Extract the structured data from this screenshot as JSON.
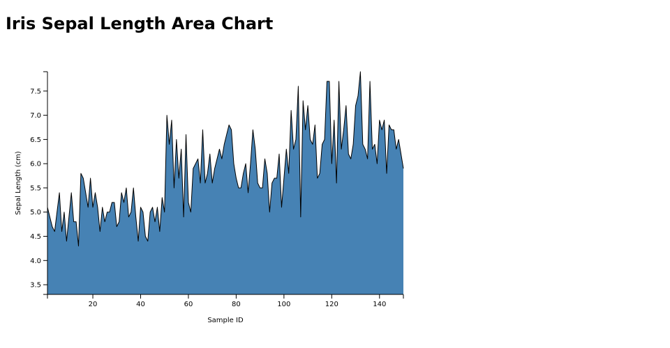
{
  "chart_data": {
    "type": "area",
    "title": "Iris Sepal Length Area Chart",
    "xlabel": "Sample ID",
    "ylabel": "Sepal Length (cm)",
    "xlim": [
      1,
      150
    ],
    "ylim": [
      3.3,
      7.9
    ],
    "x_ticks": [
      20,
      40,
      60,
      80,
      100,
      120,
      140
    ],
    "y_ticks": [
      3.5,
      4.0,
      4.5,
      5.0,
      5.5,
      6.0,
      6.5,
      7.0,
      7.5
    ],
    "y_tick_labels": [
      "3.5",
      "4.0",
      "4.5",
      "5.0",
      "5.5",
      "6.0",
      "6.5",
      "7.0",
      "7.5"
    ],
    "grid": false,
    "fill_color": "#4682b4",
    "line_color": "#000000",
    "series": [
      {
        "x_start": 1,
        "values": [
          5.1,
          4.9,
          4.7,
          4.6,
          5.0,
          5.4,
          4.6,
          5.0,
          4.4,
          4.9,
          5.4,
          4.8,
          4.8,
          4.3,
          5.8,
          5.7,
          5.4,
          5.1,
          5.7,
          5.1,
          5.4,
          5.1,
          4.6,
          5.1,
          4.8,
          5.0,
          5.0,
          5.2,
          5.2,
          4.7,
          4.8,
          5.4,
          5.2,
          5.5,
          4.9,
          5.0,
          5.5,
          4.9,
          4.4,
          5.1,
          5.0,
          4.5,
          4.4,
          5.0,
          5.1,
          4.8,
          5.1,
          4.6,
          5.3,
          5.0,
          7.0,
          6.4,
          6.9,
          5.5,
          6.5,
          5.7,
          6.3,
          4.9,
          6.6,
          5.2,
          5.0,
          5.9,
          6.0,
          6.1,
          5.6,
          6.7,
          5.6,
          5.8,
          6.2,
          5.6,
          5.9,
          6.1,
          6.3,
          6.1,
          6.4,
          6.6,
          6.8,
          6.7,
          6.0,
          5.7,
          5.5,
          5.5,
          5.8,
          6.0,
          5.4,
          6.0,
          6.7,
          6.3,
          5.6,
          5.5,
          5.5,
          6.1,
          5.8,
          5.0,
          5.6,
          5.7,
          5.7,
          6.2,
          5.1,
          5.7,
          6.3,
          5.8,
          7.1,
          6.3,
          6.5,
          7.6,
          4.9,
          7.3,
          6.7,
          7.2,
          6.5,
          6.4,
          6.8,
          5.7,
          5.8,
          6.4,
          6.5,
          7.7,
          7.7,
          6.0,
          6.9,
          5.6,
          7.7,
          6.3,
          6.7,
          7.2,
          6.2,
          6.1,
          6.4,
          7.2,
          7.4,
          7.9,
          6.4,
          6.3,
          6.1,
          7.7,
          6.3,
          6.4,
          6.0,
          6.9,
          6.7,
          6.9,
          5.8,
          6.8,
          6.7,
          6.7,
          6.3,
          6.5,
          6.2,
          5.9
        ]
      }
    ]
  }
}
